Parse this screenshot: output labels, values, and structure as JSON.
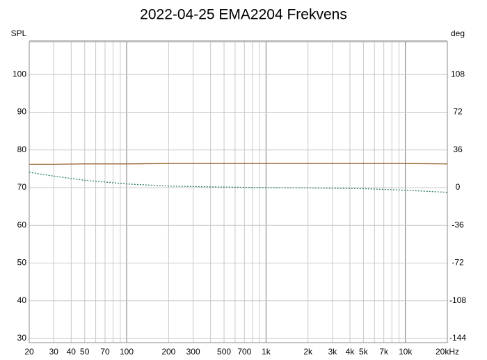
{
  "chart_data": {
    "type": "line",
    "title": "2022-04-25 EMA2204 Frekvens",
    "ylabel": "SPL",
    "y2label": "deg",
    "xscale": "log",
    "x": [
      20,
      30,
      50,
      100,
      200,
      500,
      1000,
      2000,
      5000,
      10000,
      20000
    ],
    "series": [
      {
        "color": "#9c6a3a",
        "dash": "solid",
        "values": [
          76.2,
          76.2,
          76.3,
          76.3,
          76.4,
          76.4,
          76.4,
          76.4,
          76.4,
          76.4,
          76.3
        ]
      },
      {
        "color": "#2e7d6b",
        "dash": "dotted",
        "axis": "y2",
        "values": [
          14.6,
          11,
          7,
          3.5,
          1.5,
          0.5,
          0,
          -0.3,
          -1,
          -2.5,
          -4.5
        ]
      }
    ],
    "xlim": [
      20,
      20000
    ],
    "xticks": [
      20,
      30,
      40,
      50,
      70,
      100,
      200,
      300,
      500,
      700,
      {
        "value": 1000,
        "label": "1k"
      },
      {
        "value": 2000,
        "label": "2k"
      },
      {
        "value": 3000,
        "label": "3k"
      },
      {
        "value": 4000,
        "label": "4k"
      },
      {
        "value": 5000,
        "label": "5k"
      },
      {
        "value": 7000,
        "label": "7k"
      },
      {
        "value": 10000,
        "label": "10k"
      },
      {
        "value": 20000,
        "label": "20kHz"
      }
    ],
    "x_minor_grid": [
      60,
      80,
      90,
      400,
      600,
      800,
      900,
      6000,
      8000,
      9000
    ],
    "ylim": [
      28.9,
      108.7
    ],
    "yticks": [
      30,
      40,
      50,
      60,
      70,
      80,
      90,
      100
    ],
    "y2lim": [
      -148,
      139.3
    ],
    "y2ticks": [
      -144,
      -108,
      -72,
      -36,
      0,
      36,
      72,
      108
    ],
    "grid": true
  }
}
